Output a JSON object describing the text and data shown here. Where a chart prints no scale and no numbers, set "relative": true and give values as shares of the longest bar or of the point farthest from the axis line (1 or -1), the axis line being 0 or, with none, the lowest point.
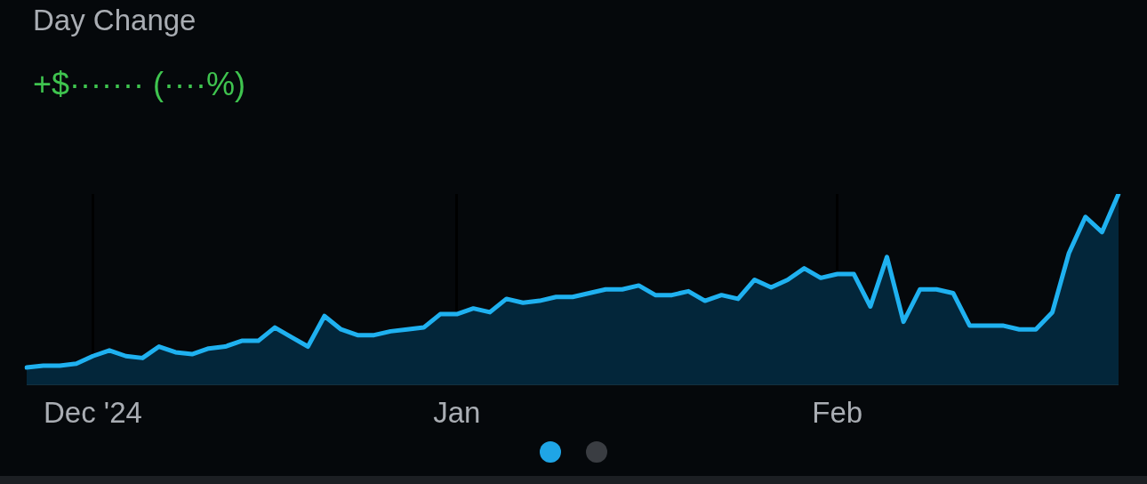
{
  "chart_data": {
    "type": "area",
    "title": "Day Change",
    "subtitle": "+$······· (····%)",
    "relative": true,
    "grid": "x",
    "legend": false,
    "marker": "none",
    "categories": [
      null,
      null,
      null,
      null,
      "Dec '24",
      null,
      null,
      null,
      null,
      null,
      null,
      null,
      null,
      null,
      null,
      null,
      null,
      null,
      null,
      null,
      null,
      null,
      null,
      null,
      null,
      null,
      "Jan",
      null,
      null,
      null,
      null,
      null,
      null,
      null,
      null,
      null,
      null,
      null,
      null,
      null,
      null,
      null,
      null,
      null,
      null,
      null,
      null,
      null,
      null,
      "Feb",
      null,
      null,
      null,
      null,
      null,
      null,
      null,
      null,
      null,
      null,
      null,
      null,
      null,
      null,
      null,
      null,
      null
    ],
    "series": [
      {
        "color": "#1fb1f0",
        "values": [
          0.09,
          0.1,
          0.1,
          0.11,
          0.15,
          0.18,
          0.15,
          0.14,
          0.2,
          0.17,
          0.16,
          0.19,
          0.2,
          0.23,
          0.23,
          0.3,
          0.25,
          0.2,
          0.36,
          0.29,
          0.26,
          0.26,
          0.28,
          0.29,
          0.3,
          0.37,
          0.37,
          0.4,
          0.38,
          0.45,
          0.43,
          0.44,
          0.46,
          0.46,
          0.48,
          0.5,
          0.5,
          0.52,
          0.47,
          0.47,
          0.49,
          0.44,
          0.47,
          0.45,
          0.55,
          0.51,
          0.55,
          0.61,
          0.56,
          0.58,
          0.58,
          0.41,
          0.67,
          0.33,
          0.5,
          0.5,
          0.48,
          0.31,
          0.31,
          0.31,
          0.29,
          0.29,
          0.38,
          0.69,
          0.88,
          0.8,
          1
        ]
      }
    ]
  }
}
